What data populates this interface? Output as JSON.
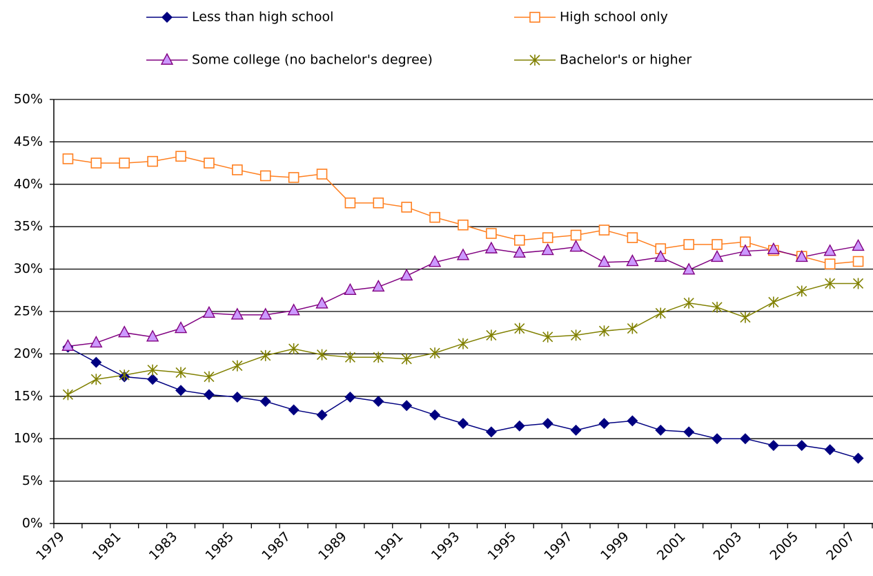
{
  "chart_data": {
    "type": "line",
    "categories": [
      "1979",
      null,
      "1981",
      null,
      "1983",
      null,
      "1985",
      null,
      "1987",
      null,
      "1989",
      null,
      "1991",
      null,
      "1993",
      null,
      "1995",
      null,
      "1997",
      null,
      "1999",
      null,
      "2001",
      null,
      "2003",
      null,
      "2005",
      null,
      "2007"
    ],
    "series": [
      {
        "name": "Less than high school",
        "color": "#000080",
        "marker": "diamond",
        "values": [
          20.8,
          19.0,
          17.3,
          17.0,
          15.7,
          15.2,
          14.9,
          14.4,
          13.4,
          12.8,
          14.9,
          14.4,
          13.9,
          12.8,
          11.8,
          10.8,
          11.5,
          11.8,
          11.0,
          11.8,
          12.1,
          11.0,
          10.8,
          10.0,
          10.0,
          9.2,
          9.2,
          8.7,
          7.7
        ]
      },
      {
        "name": "High school only",
        "color": "#ff7f1f",
        "marker": "square",
        "values": [
          43.0,
          42.5,
          42.5,
          42.7,
          43.3,
          42.5,
          41.7,
          41.0,
          40.8,
          41.2,
          37.8,
          37.8,
          37.3,
          36.1,
          35.2,
          34.2,
          33.4,
          33.7,
          34.0,
          34.6,
          33.7,
          32.4,
          32.9,
          32.9,
          33.2,
          32.2,
          31.5,
          30.6,
          30.9
        ]
      },
      {
        "name": "Some college (no bachelor's degree)",
        "color": "#800080",
        "marker": "triangle",
        "values": [
          20.9,
          21.3,
          22.5,
          22.0,
          23.0,
          24.8,
          24.6,
          24.6,
          25.1,
          25.9,
          27.5,
          27.9,
          29.2,
          30.8,
          31.6,
          32.4,
          31.9,
          32.2,
          32.6,
          30.8,
          30.9,
          31.4,
          29.9,
          31.4,
          32.1,
          32.3,
          31.4,
          32.1,
          32.7
        ]
      },
      {
        "name": "Bachelor's or higher",
        "color": "#808000",
        "marker": "asterisk",
        "values": [
          15.2,
          17.0,
          17.5,
          18.1,
          17.8,
          17.3,
          18.6,
          19.8,
          20.6,
          19.9,
          19.6,
          19.6,
          19.4,
          20.1,
          21.2,
          22.2,
          23.0,
          22.0,
          22.2,
          22.7,
          23.0,
          24.8,
          26.0,
          25.5,
          24.3,
          26.1,
          27.4,
          28.3,
          28.3
        ]
      }
    ],
    "ylim": [
      0,
      50
    ],
    "yticks": [
      {
        "value": 0,
        "label": "0%"
      },
      {
        "value": 5,
        "label": "5%"
      },
      {
        "value": 10,
        "label": "10%"
      },
      {
        "value": 15,
        "label": "15%"
      },
      {
        "value": 20,
        "label": "20%"
      },
      {
        "value": 25,
        "label": "25%"
      },
      {
        "value": 30,
        "label": "30%"
      },
      {
        "value": 35,
        "label": "35%"
      },
      {
        "value": 40,
        "label": "40%"
      },
      {
        "value": 45,
        "label": "45%"
      },
      {
        "value": 50,
        "label": "50%"
      }
    ],
    "grid": true,
    "legend": "top"
  }
}
